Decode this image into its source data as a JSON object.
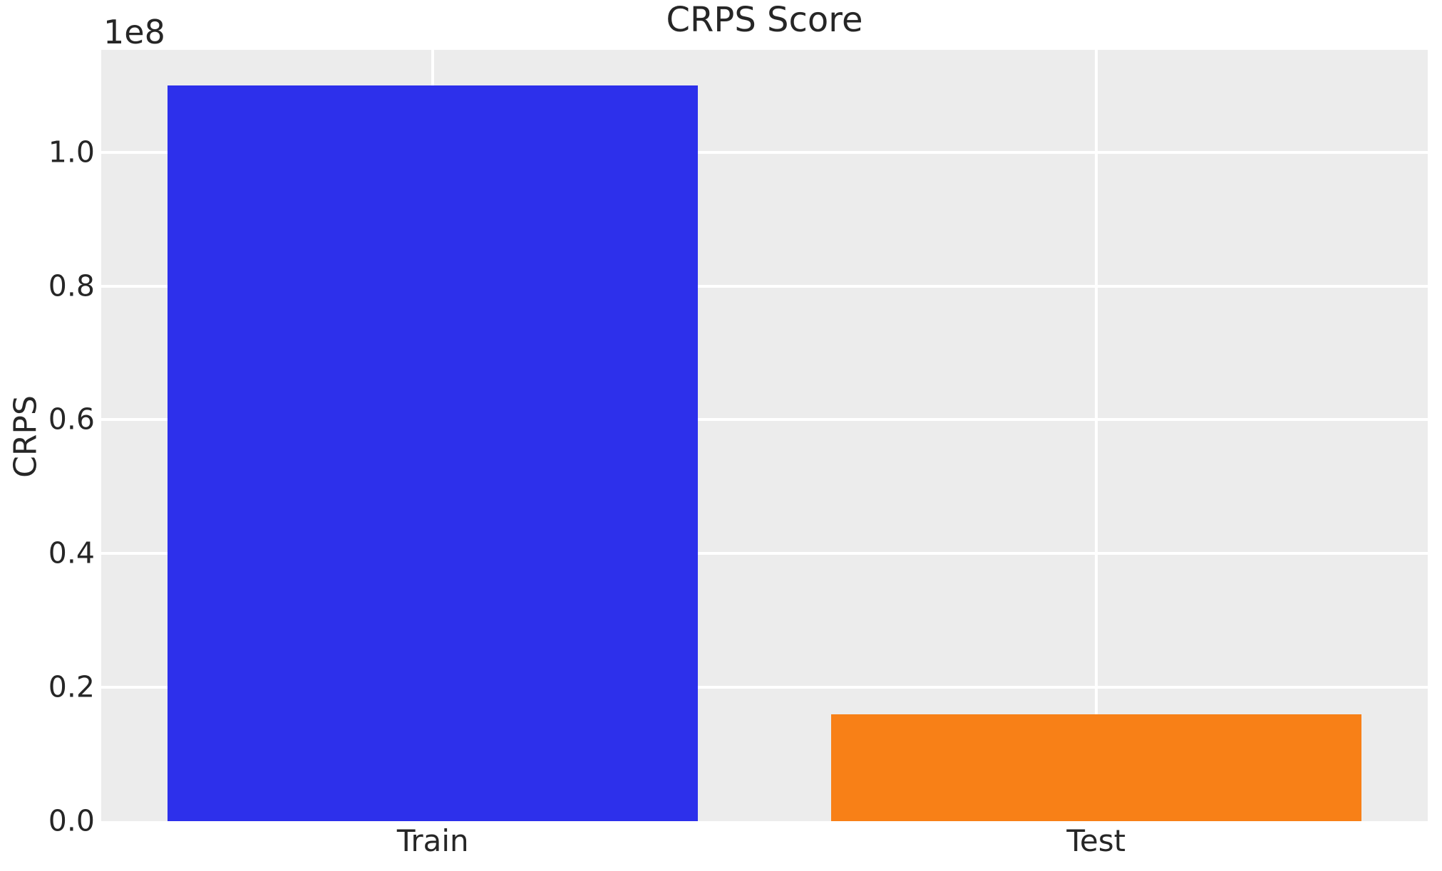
{
  "chart_data": {
    "type": "bar",
    "title": "CRPS Score",
    "xlabel": "",
    "ylabel": "CRPS",
    "y_offset_label": "1e8",
    "categories": [
      "Train",
      "Test"
    ],
    "values": [
      110000000,
      16000000
    ],
    "values_in_1e8_units": [
      1.1,
      0.16
    ],
    "ylim": [
      0,
      115300000
    ],
    "yticks": [
      0,
      20000000,
      40000000,
      60000000,
      80000000,
      100000000
    ],
    "ytick_labels": [
      "0.0",
      "0.2",
      "0.4",
      "0.6",
      "0.8",
      "1.0"
    ],
    "xtick_labels": [
      "Train",
      "Test"
    ],
    "bar_width_fraction_of_category": 0.8,
    "grid": true,
    "legend": false,
    "colors": {
      "bars": [
        "#2d30eb",
        "#f88017"
      ],
      "plot_background": "#ececec",
      "figure_background": "#ffffff",
      "gridline": "#ffffff",
      "text": "#262626"
    }
  }
}
